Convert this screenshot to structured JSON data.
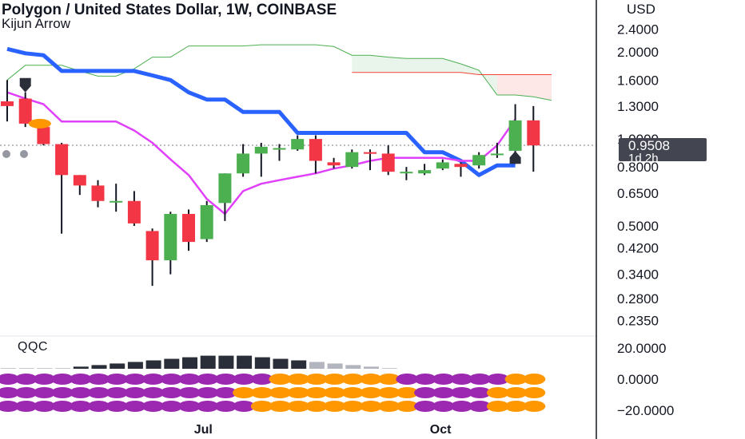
{
  "header": {
    "title": "Polygon / United States Dollar, 1W, COINBASE",
    "subtitle": "Kijun Arrow",
    "currency": "USD"
  },
  "price_tag": {
    "value": "0.9508",
    "countdown": "1d 2h"
  },
  "indicator_label": "QQC",
  "colors": {
    "up": "#4caf50",
    "down": "#f23645",
    "kijun": "#2962ff",
    "tenkan": "#e040fb",
    "cloud_up": "#4caf50",
    "cloud_down": "#f44336",
    "hist_dark": "#2a2e39",
    "hist_light": "#b2b5be",
    "dot_purple": "#9c27b0",
    "dot_orange": "#ff9800"
  },
  "chart_data": {
    "type": "candlestick",
    "scale": "log",
    "ylim": [
      0.22,
      2.6
    ],
    "y_ticks": [
      "2.4000",
      "2.0000",
      "1.6000",
      "1.3000",
      "1.0000",
      "0.8000",
      "0.6500",
      "0.5000",
      "0.4200",
      "0.3400",
      "0.2800",
      "0.2350"
    ],
    "x_labels": [
      {
        "label": "Jul",
        "index": 11
      },
      {
        "label": "Oct",
        "index": 24
      }
    ],
    "candles": [
      {
        "o": 1.35,
        "h": 1.6,
        "l": 1.15,
        "c": 1.3
      },
      {
        "o": 1.38,
        "h": 1.45,
        "l": 1.1,
        "c": 1.13
      },
      {
        "o": 1.1,
        "h": 1.15,
        "l": 0.95,
        "c": 0.96
      },
      {
        "o": 0.96,
        "h": 0.97,
        "l": 0.47,
        "c": 0.75
      },
      {
        "o": 0.75,
        "h": 0.75,
        "l": 0.64,
        "c": 0.69
      },
      {
        "o": 0.69,
        "h": 0.72,
        "l": 0.58,
        "c": 0.61
      },
      {
        "o": 0.61,
        "h": 0.7,
        "l": 0.56,
        "c": 0.61
      },
      {
        "o": 0.61,
        "h": 0.66,
        "l": 0.5,
        "c": 0.51
      },
      {
        "o": 0.48,
        "h": 0.49,
        "l": 0.31,
        "c": 0.38
      },
      {
        "o": 0.38,
        "h": 0.56,
        "l": 0.34,
        "c": 0.55
      },
      {
        "o": 0.55,
        "h": 0.57,
        "l": 0.41,
        "c": 0.44
      },
      {
        "o": 0.45,
        "h": 0.61,
        "l": 0.44,
        "c": 0.59
      },
      {
        "o": 0.6,
        "h": 0.76,
        "l": 0.52,
        "c": 0.76
      },
      {
        "o": 0.76,
        "h": 0.96,
        "l": 0.74,
        "c": 0.89
      },
      {
        "o": 0.89,
        "h": 0.97,
        "l": 0.74,
        "c": 0.94
      },
      {
        "o": 0.93,
        "h": 0.96,
        "l": 0.84,
        "c": 0.93
      },
      {
        "o": 0.92,
        "h": 1.03,
        "l": 0.91,
        "c": 1.0
      },
      {
        "o": 1.0,
        "h": 1.03,
        "l": 0.76,
        "c": 0.84
      },
      {
        "o": 0.83,
        "h": 0.86,
        "l": 0.79,
        "c": 0.81
      },
      {
        "o": 0.8,
        "h": 0.92,
        "l": 0.79,
        "c": 0.9
      },
      {
        "o": 0.9,
        "h": 0.92,
        "l": 0.78,
        "c": 0.89
      },
      {
        "o": 0.89,
        "h": 0.95,
        "l": 0.75,
        "c": 0.77
      },
      {
        "o": 0.77,
        "h": 0.8,
        "l": 0.72,
        "c": 0.77
      },
      {
        "o": 0.76,
        "h": 0.82,
        "l": 0.75,
        "c": 0.78
      },
      {
        "o": 0.79,
        "h": 0.85,
        "l": 0.78,
        "c": 0.83
      },
      {
        "o": 0.82,
        "h": 0.83,
        "l": 0.74,
        "c": 0.8
      },
      {
        "o": 0.81,
        "h": 0.9,
        "l": 0.79,
        "c": 0.88
      },
      {
        "o": 0.88,
        "h": 0.97,
        "l": 0.86,
        "c": 0.89
      },
      {
        "o": 0.91,
        "h": 1.32,
        "l": 0.82,
        "c": 1.16
      },
      {
        "o": 1.16,
        "h": 1.3,
        "l": 0.77,
        "c": 0.95
      }
    ],
    "kijun": [
      2.05,
      1.98,
      1.95,
      1.72,
      1.72,
      1.72,
      1.72,
      1.72,
      1.66,
      1.6,
      1.45,
      1.37,
      1.37,
      1.24,
      1.24,
      1.24,
      1.05,
      1.05,
      1.05,
      1.05,
      1.05,
      1.05,
      1.05,
      0.9,
      0.9,
      0.84,
      0.75,
      0.81,
      0.81
    ],
    "tenkan": [
      1.45,
      1.38,
      1.32,
      1.15,
      1.15,
      1.15,
      1.15,
      1.07,
      0.97,
      0.85,
      0.75,
      0.62,
      0.55,
      0.66,
      0.7,
      0.72,
      0.74,
      0.76,
      0.79,
      0.81,
      0.84,
      0.86,
      0.86,
      0.86,
      0.86,
      0.84,
      0.84,
      0.95,
      1.17
    ],
    "cloud": {
      "span_a": [
        1.6,
        1.8,
        1.8,
        1.8,
        1.72,
        1.65,
        1.65,
        1.75,
        1.92,
        1.92,
        2.1,
        2.1,
        2.1,
        2.1,
        2.12,
        2.12,
        2.12,
        2.12,
        2.09,
        1.95,
        1.95,
        1.92,
        1.9,
        1.9,
        1.9,
        1.82,
        1.73,
        1.42,
        1.42,
        1.4,
        1.36
      ],
      "span_b": [
        null,
        null,
        null,
        null,
        null,
        null,
        null,
        null,
        null,
        null,
        null,
        null,
        null,
        null,
        null,
        null,
        null,
        null,
        null,
        1.7,
        1.7,
        1.7,
        1.7,
        1.7,
        1.7,
        1.7,
        1.67,
        1.67,
        1.67,
        1.67,
        1.67
      ]
    },
    "arrows": [
      {
        "index": 1,
        "dir": "down"
      },
      {
        "index": 28,
        "dir": "up"
      }
    ],
    "oscillator": {
      "ylim": [
        -24,
        24
      ],
      "y_ticks": [
        "20.0000",
        "0.0000",
        "-20.0000"
      ],
      "values": [
        7,
        7,
        7,
        7,
        8,
        9,
        10,
        11,
        12,
        13,
        14,
        15,
        15,
        15,
        14,
        13,
        12,
        11,
        10,
        9,
        8,
        7,
        6,
        6,
        5,
        5,
        4,
        3,
        3,
        3,
        4,
        5,
        5
      ],
      "dark_range": [
        4,
        16
      ],
      "dot_rows": [
        {
          "purple_until": 14,
          "purple_after": 21,
          "orange_after": 27
        },
        {
          "purple_until": 12,
          "purple_after": 22,
          "orange_after": 26
        },
        {
          "purple_until": 13,
          "purple_after": 22,
          "orange_after": 26
        }
      ]
    }
  }
}
